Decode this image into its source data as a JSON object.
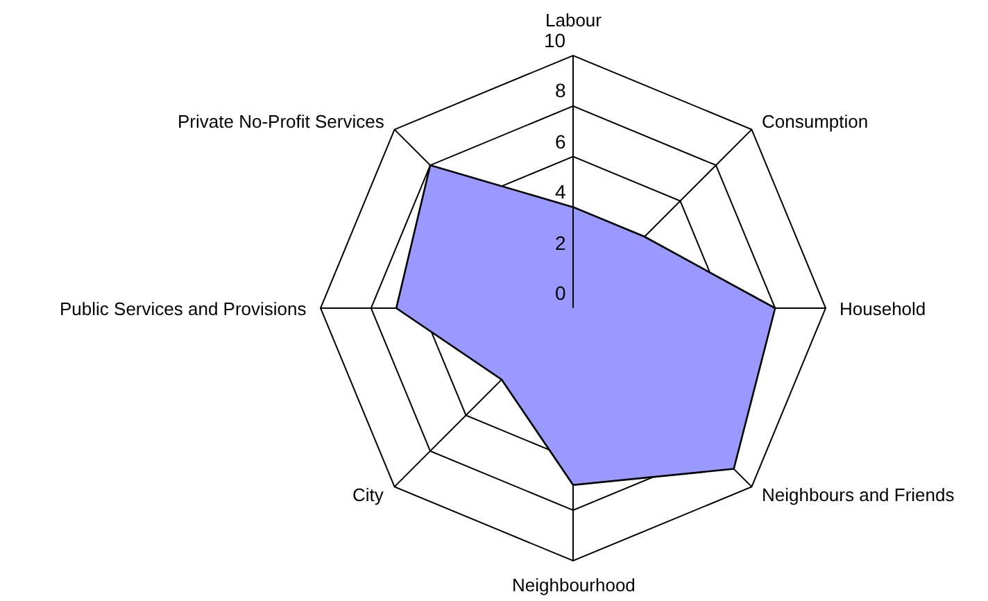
{
  "chart_data": {
    "type": "radar",
    "categories": [
      "Labour",
      "Consumption",
      "Household",
      "Neighbours and Friends",
      "Neighbourhood",
      "City",
      "Public Services and Provisions",
      "Private No-Profit Services"
    ],
    "series": [
      {
        "color": "#9999ff",
        "values": [
          4,
          4,
          8,
          9,
          7,
          4,
          7,
          8
        ]
      }
    ],
    "ylim": [
      0,
      10
    ],
    "yticks": [
      0,
      2,
      4,
      6,
      8,
      10
    ],
    "grid": true
  }
}
